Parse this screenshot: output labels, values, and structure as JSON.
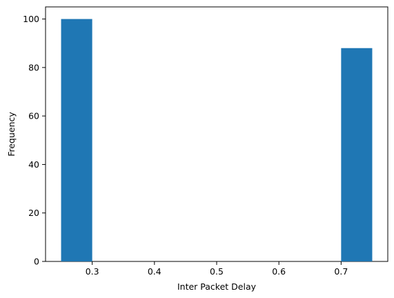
{
  "chart_data": {
    "type": "bar",
    "title": "",
    "xlabel": "Inter Packet Delay",
    "ylabel": "Frequency",
    "xlim": [
      0.225,
      0.775
    ],
    "ylim": [
      0,
      105
    ],
    "x_ticks": [
      {
        "value": 0.3,
        "label": "0.3"
      },
      {
        "value": 0.4,
        "label": "0.4"
      },
      {
        "value": 0.5,
        "label": "0.5"
      },
      {
        "value": 0.6,
        "label": "0.6"
      },
      {
        "value": 0.7,
        "label": "0.7"
      }
    ],
    "y_ticks": [
      {
        "value": 0,
        "label": "0"
      },
      {
        "value": 20,
        "label": "20"
      },
      {
        "value": 40,
        "label": "40"
      },
      {
        "value": 60,
        "label": "60"
      },
      {
        "value": 80,
        "label": "80"
      },
      {
        "value": 100,
        "label": "100"
      }
    ],
    "bins": [
      {
        "x0": 0.25,
        "x1": 0.3,
        "count": 100
      },
      {
        "x0": 0.3,
        "x1": 0.35,
        "count": 0
      },
      {
        "x0": 0.35,
        "x1": 0.4,
        "count": 0
      },
      {
        "x0": 0.4,
        "x1": 0.45,
        "count": 0
      },
      {
        "x0": 0.45,
        "x1": 0.5,
        "count": 0
      },
      {
        "x0": 0.5,
        "x1": 0.55,
        "count": 0
      },
      {
        "x0": 0.55,
        "x1": 0.6,
        "count": 0
      },
      {
        "x0": 0.6,
        "x1": 0.65,
        "count": 0
      },
      {
        "x0": 0.65,
        "x1": 0.7,
        "count": 0
      },
      {
        "x0": 0.7,
        "x1": 0.75,
        "count": 88
      }
    ],
    "bar_color": "#1f77b4",
    "grid": false,
    "legend": "none"
  }
}
